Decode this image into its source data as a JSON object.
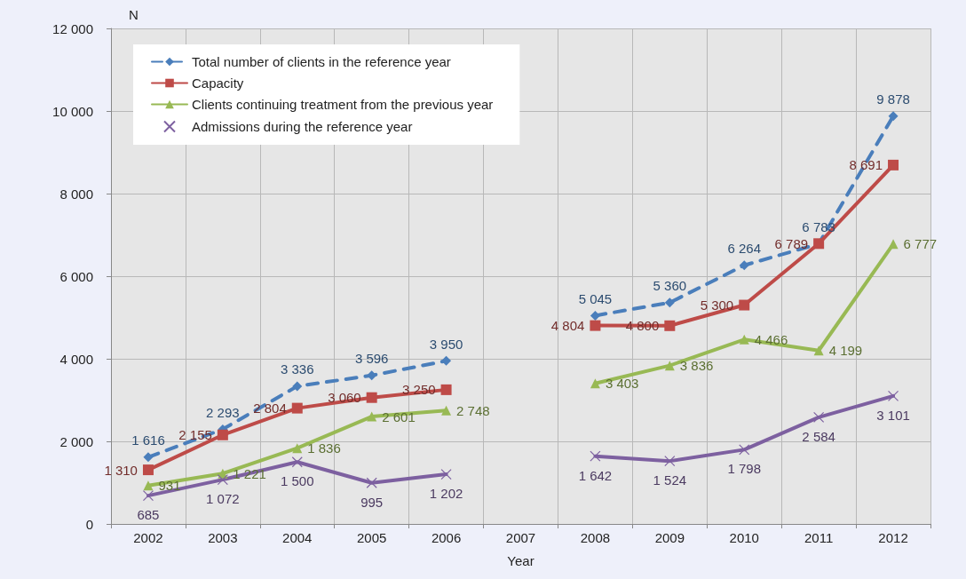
{
  "chart_data": {
    "type": "line",
    "xlabel": "Year",
    "ylabel": "N",
    "categories": [
      "2002",
      "2003",
      "2004",
      "2005",
      "2006",
      "2007",
      "2008",
      "2009",
      "2010",
      "2011",
      "2012"
    ],
    "series": [
      {
        "name": "Total number of clients in the reference year",
        "color": "#4a7ebb",
        "marker": "diamond",
        "line_style": "dashed",
        "values": [
          1616,
          2293,
          3336,
          3596,
          3950,
          null,
          5045,
          5360,
          6264,
          6783,
          9878
        ],
        "value_labels": [
          "1 616",
          "2 293",
          "3 336",
          "3 596",
          "3 950",
          null,
          "5 045",
          "5 360",
          "6 264",
          "6 783",
          "9 878"
        ]
      },
      {
        "name": "Capacity",
        "color": "#be4b48",
        "marker": "square",
        "line_style": "solid",
        "values": [
          1310,
          2155,
          2804,
          3060,
          3250,
          null,
          4804,
          4800,
          5300,
          6789,
          8691
        ],
        "value_labels": [
          "1 310",
          "2 155",
          "2 804",
          "3 060",
          "3 250",
          null,
          "4 804",
          "4 800",
          "5 300",
          "6 789",
          "8 691"
        ]
      },
      {
        "name": "Clients continuing treatment from the previous year",
        "color": "#98b954",
        "marker": "triangle",
        "line_style": "solid",
        "values": [
          931,
          1221,
          1836,
          2601,
          2748,
          null,
          3403,
          3836,
          4466,
          4199,
          6777
        ],
        "value_labels": [
          "931",
          "1 221",
          "1 836",
          "2 601",
          "2 748",
          null,
          "3 403",
          "3 836",
          "4 466",
          "4 199",
          "6 777"
        ]
      },
      {
        "name": "Admissions during the reference year",
        "color": "#7d60a0",
        "marker": "cross",
        "line_style": "solid",
        "values": [
          685,
          1072,
          1500,
          995,
          1202,
          null,
          1642,
          1524,
          1798,
          2584,
          3101
        ],
        "value_labels": [
          "685",
          "1 072",
          "1 500",
          "995",
          "1 202",
          null,
          "1 642",
          "1 524",
          "1 798",
          "2 584",
          "3 101"
        ]
      }
    ],
    "ylim": [
      0,
      12000
    ],
    "yticks": [
      0,
      {
        "value": 2000,
        "label": "2 000"
      },
      {
        "value": 4000,
        "label": "4 000"
      },
      {
        "value": 6000,
        "label": "6 000"
      },
      {
        "value": 8000,
        "label": "8 000"
      },
      {
        "value": 10000,
        "label": "10 000"
      },
      {
        "value": 12000,
        "label": "12 000"
      }
    ],
    "grid": true,
    "legend": "top left"
  }
}
